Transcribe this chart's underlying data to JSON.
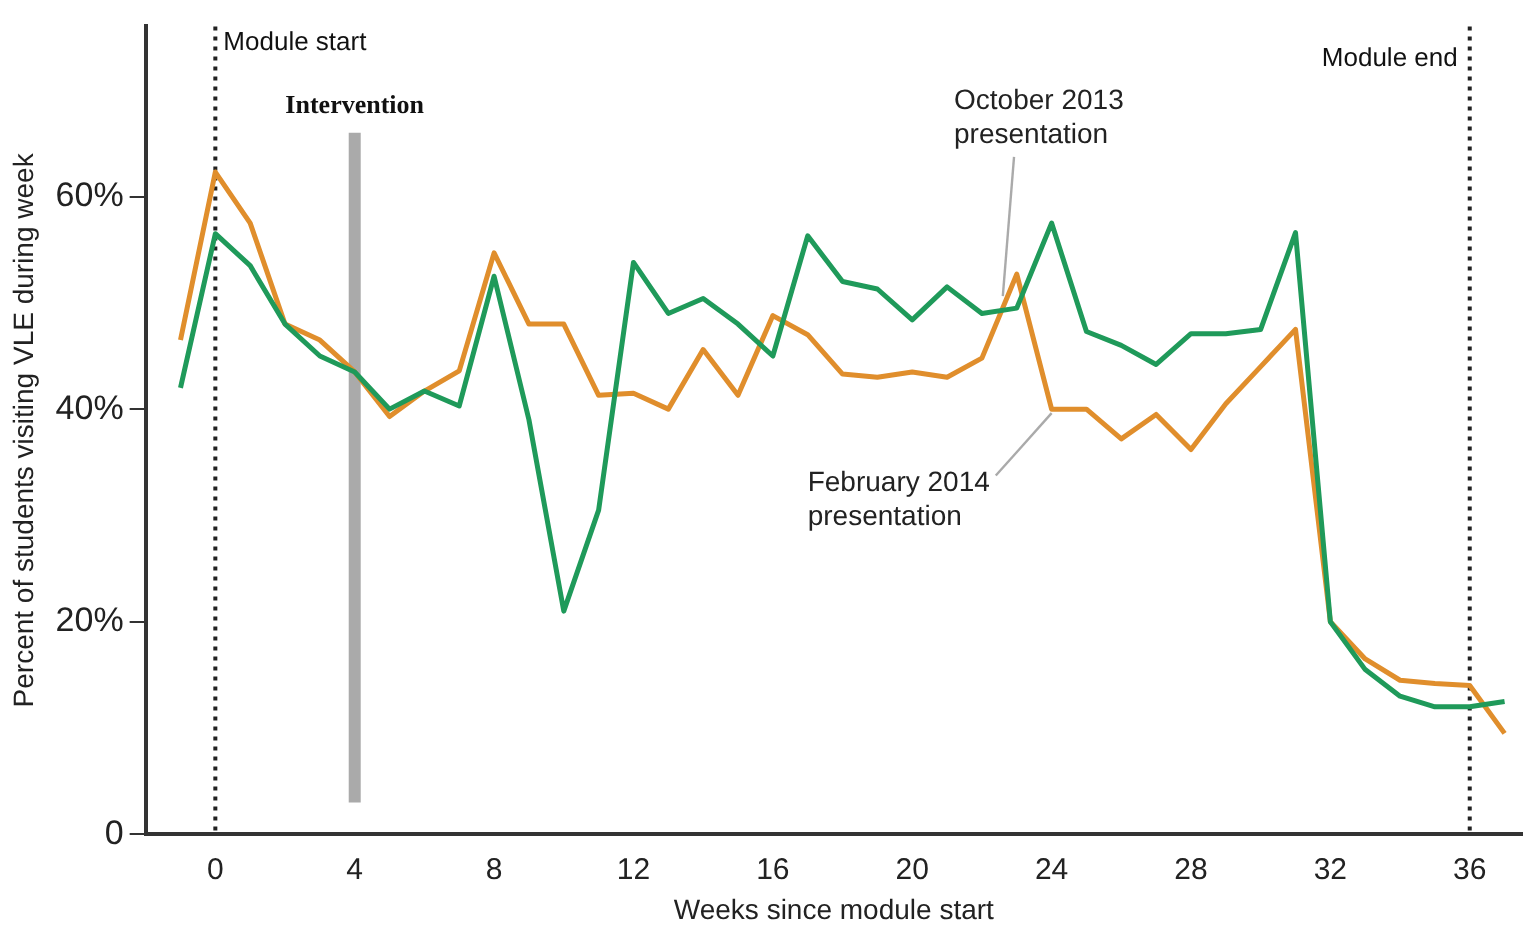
{
  "chart_data": {
    "type": "line",
    "xlabel": "Weeks since module start",
    "ylabel": "Percent of students visiting VLE during week",
    "x": [
      -1,
      0,
      1,
      2,
      3,
      4,
      5,
      6,
      7,
      8,
      9,
      10,
      11,
      12,
      13,
      14,
      15,
      16,
      17,
      18,
      19,
      20,
      21,
      22,
      23,
      24,
      25,
      26,
      27,
      28,
      29,
      30,
      31,
      32,
      33,
      34,
      35,
      36,
      37
    ],
    "series": [
      {
        "name": "October 2013 presentation",
        "color": "#1f9a5a",
        "values": [
          42,
          56.5,
          53.5,
          48,
          45,
          43.5,
          40,
          41.7,
          40.3,
          52.5,
          39,
          21,
          30.5,
          53.8,
          49,
          50.4,
          48,
          45,
          56.3,
          52,
          51.3,
          48.4,
          51.5,
          49,
          49.5,
          57.5,
          47.3,
          46,
          44.2,
          47.1,
          47.1,
          47.5,
          56.6,
          20,
          15.5,
          13,
          12,
          12,
          12.5
        ]
      },
      {
        "name": "February 2014 presentation",
        "color": "#e08e2c",
        "values": [
          46.5,
          62.3,
          57.5,
          48,
          46.5,
          43.5,
          39.3,
          41.7,
          43.6,
          54.7,
          48,
          48,
          41.3,
          41.5,
          40,
          45.6,
          41.3,
          48.8,
          47,
          43.3,
          43,
          43.5,
          43,
          44.8,
          52.7,
          40,
          40,
          37.2,
          39.5,
          36.2,
          40.5,
          44,
          47.5,
          20,
          16.5,
          14.5,
          14.2,
          14,
          9.5
        ]
      }
    ],
    "xlim": [
      -2,
      37.5
    ],
    "xticks": [
      0,
      4,
      8,
      12,
      16,
      20,
      24,
      28,
      32,
      36
    ],
    "ylim": [
      0,
      76
    ],
    "yticks": [
      0,
      {
        "value": 20,
        "label": "20%"
      },
      {
        "value": 40,
        "label": "40%"
      },
      {
        "value": 60,
        "label": "60%"
      }
    ],
    "ref_lines": [
      {
        "axis": "x",
        "value": 0,
        "label": "Module start",
        "color": "#222222",
        "line_style": "dotted"
      },
      {
        "axis": "x",
        "value": 36,
        "label": "Module end",
        "color": "#222222",
        "line_style": "dotted"
      },
      {
        "axis": "x",
        "value": 4,
        "label": "Intervention",
        "color": "#aaaaaa",
        "line_style": "solid"
      }
    ],
    "grid": false,
    "legend": false,
    "marker": "none",
    "line_style": "solid"
  }
}
